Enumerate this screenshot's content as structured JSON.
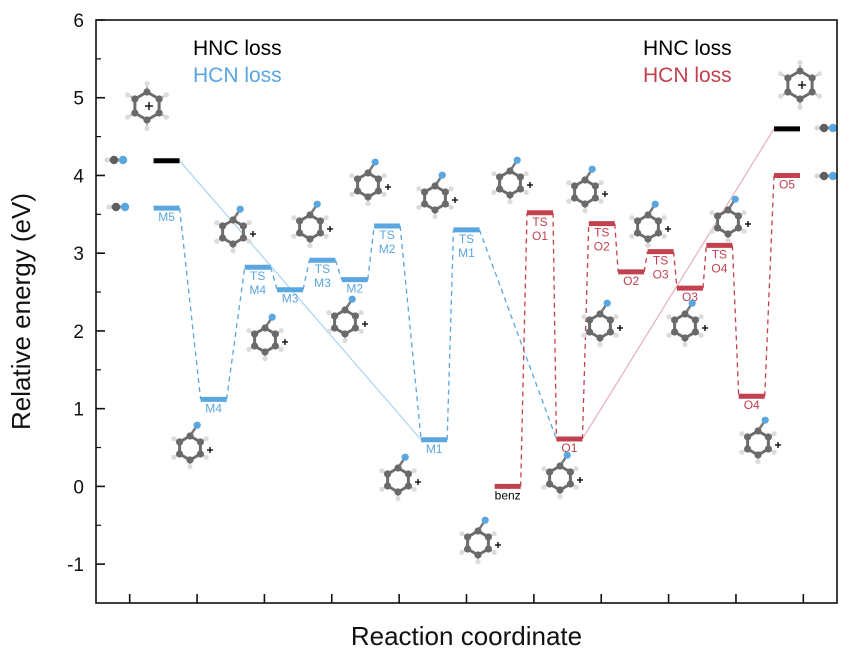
{
  "chart_data": {
    "type": "energy-level-diagram",
    "xlabel": "Reaction coordinate",
    "ylabel": "Relative energy (eV)",
    "ylim": [
      -1.5,
      6
    ],
    "y_ticks": [
      -1,
      0,
      1,
      2,
      3,
      4,
      5,
      6
    ],
    "x_tick_count": 11,
    "colors": {
      "blue": "#5aa6e0",
      "red": "#c2414f",
      "black": "#000000",
      "light_blue": "#a8d4f0",
      "light_red": "#e8b0b8"
    },
    "legends": [
      {
        "position": "top-left",
        "items": [
          {
            "text": "HNC loss",
            "color": "#000000"
          },
          {
            "text": "HCN loss",
            "color": "#5aa6e0"
          }
        ]
      },
      {
        "position": "top-right",
        "items": [
          {
            "text": "HNC loss",
            "color": "#000000"
          },
          {
            "text": "HCN loss",
            "color": "#c2414f"
          }
        ]
      }
    ],
    "series": [
      {
        "color": "#5aa6e0",
        "levels": [
          {
            "id": "M5",
            "label": "M5",
            "x": 1.2,
            "energy": 3.58
          },
          {
            "id": "M4",
            "label": "M4",
            "x": 2.0,
            "energy": 1.12
          },
          {
            "id": "TSM4",
            "label": "TS M4",
            "x": 2.75,
            "energy": 2.82
          },
          {
            "id": "M3",
            "label": "M3",
            "x": 3.3,
            "energy": 2.53
          },
          {
            "id": "TSM3",
            "label": "TS M3",
            "x": 3.85,
            "energy": 2.91
          },
          {
            "id": "M2",
            "label": "M2",
            "x": 4.4,
            "energy": 2.66
          },
          {
            "id": "TSM2",
            "label": "TS M2",
            "x": 4.95,
            "energy": 3.35
          },
          {
            "id": "M1",
            "label": "M1",
            "x": 5.75,
            "energy": 0.6
          },
          {
            "id": "TSM1",
            "label": "TS M1",
            "x": 6.3,
            "energy": 3.3
          }
        ]
      },
      {
        "color": "#c2414f",
        "levels": [
          {
            "id": "benz",
            "label": "benz",
            "x": 7.0,
            "energy": 0.0
          },
          {
            "id": "TSO1",
            "label": "TS O1",
            "x": 7.55,
            "energy": 3.52
          },
          {
            "id": "O1",
            "label": "O1",
            "x": 8.05,
            "energy": 0.61
          },
          {
            "id": "TSO2",
            "label": "TS O2",
            "x": 8.6,
            "energy": 3.38
          },
          {
            "id": "O2",
            "label": "O2",
            "x": 9.1,
            "energy": 2.76
          },
          {
            "id": "TSO3",
            "label": "TS O3",
            "x": 9.6,
            "energy": 3.02
          },
          {
            "id": "O3",
            "label": "O3",
            "x": 10.1,
            "energy": 2.55
          },
          {
            "id": "TSO4",
            "label": "TS O4",
            "x": 10.6,
            "energy": 3.1
          },
          {
            "id": "O4",
            "label": "O4",
            "x": 11.15,
            "energy": 1.16
          },
          {
            "id": "O5",
            "label": "O5",
            "x": 11.75,
            "energy": 4.0
          }
        ]
      },
      {
        "color": "#000000",
        "levels": [
          {
            "id": "HNC_left",
            "label": "",
            "x": 1.2,
            "energy": 4.19
          },
          {
            "id": "HNC_right",
            "label": "",
            "x": 11.75,
            "energy": 4.6
          }
        ]
      }
    ],
    "dashed_paths": [
      {
        "color": "#5aa6e0",
        "sequence": [
          "M5",
          "M4",
          "TSM4",
          "M3",
          "TSM3",
          "M2",
          "TSM2",
          "M1",
          "TSM1",
          "O1"
        ]
      },
      {
        "color": "#c2414f",
        "sequence": [
          "benz",
          "TSO1",
          "O1",
          "TSO2",
          "O2",
          "TSO3",
          "O3",
          "TSO4",
          "O4",
          "O5"
        ]
      }
    ],
    "thin_lines": [
      {
        "color": "#a8d4f0",
        "from": "HNC_left",
        "to": "M1"
      },
      {
        "color": "#e8b0b8",
        "from": "O1",
        "to": "HNC_right"
      }
    ]
  }
}
